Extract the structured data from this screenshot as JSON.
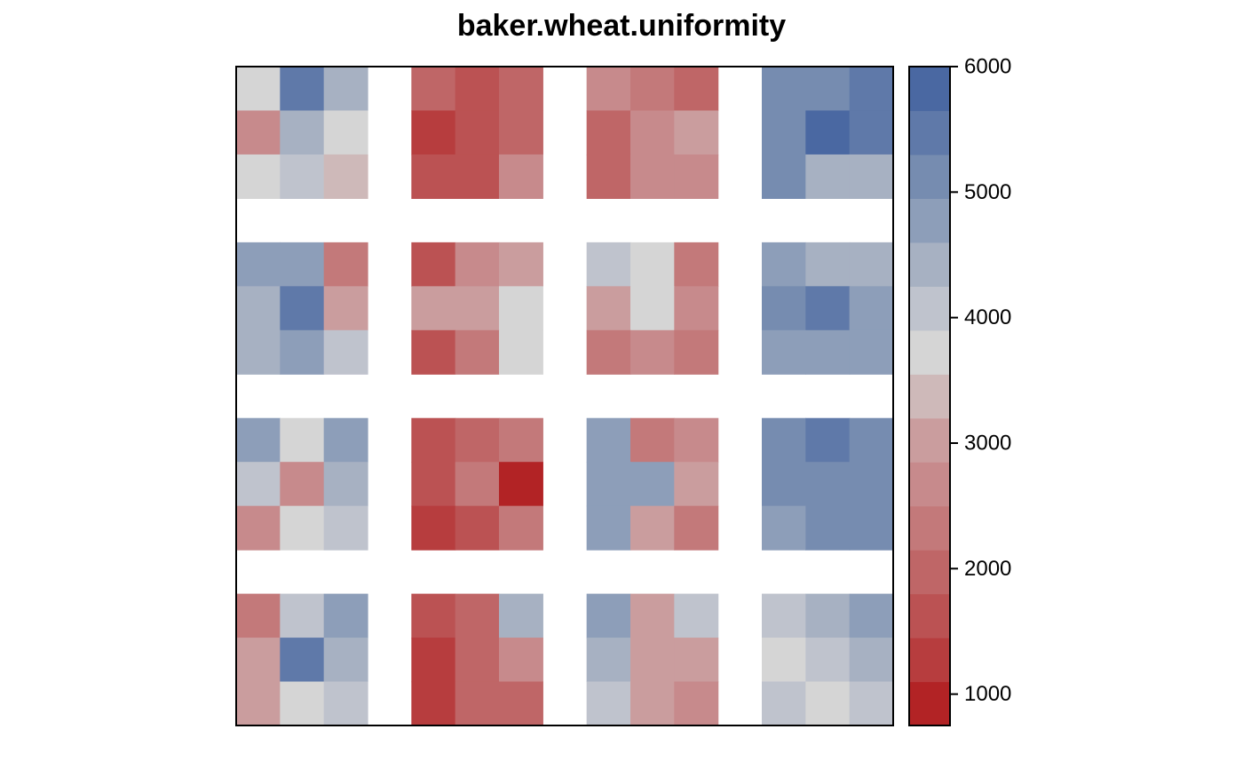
{
  "chart_data": {
    "type": "heatmap",
    "title": "baker.wheat.uniformity",
    "xlabel": "",
    "ylabel": "",
    "grid": false,
    "n_cols": 15,
    "n_rows": 15,
    "zlim": [
      750,
      6000
    ],
    "colorbar": {
      "placement": "right",
      "ticks": [
        1000,
        2000,
        3000,
        4000,
        5000,
        6000
      ],
      "tick_labels": [
        "1000",
        "2000",
        "3000",
        "4000",
        "5000",
        "6000"
      ],
      "colors": [
        "#b22325",
        "#b73d3e",
        "#bb5253",
        "#bf6667",
        "#c3797a",
        "#c78a8c",
        "#ca9d9e",
        "#ceb9b9",
        "#d5d5d5",
        "#bfc3cd",
        "#a7b1c2",
        "#8d9eb9",
        "#768cb0",
        "#5f79a9",
        "#4a68a2"
      ]
    },
    "values": [
      [
        3650,
        5450,
        4300,
        null,
        2050,
        1700,
        2050,
        null,
        2750,
        2300,
        1950,
        null,
        4950,
        4950,
        5400
      ],
      [
        2750,
        4300,
        3650,
        null,
        1300,
        1700,
        2050,
        null,
        2050,
        2750,
        3150,
        null,
        4950,
        5950,
        5450
      ],
      [
        3650,
        4050,
        3200,
        null,
        1700,
        1700,
        2750,
        null,
        2050,
        2750,
        2750,
        null,
        4950,
        4300,
        4300
      ],
      [
        null,
        null,
        null,
        null,
        null,
        null,
        null,
        null,
        null,
        null,
        null,
        null,
        null,
        null,
        null
      ],
      [
        4600,
        4600,
        2300,
        null,
        1700,
        2750,
        3150,
        null,
        4050,
        3650,
        2300,
        null,
        4600,
        4300,
        4300
      ],
      [
        4300,
        5450,
        3150,
        null,
        3150,
        3150,
        3650,
        null,
        3150,
        3650,
        2750,
        null,
        4950,
        5450,
        4600
      ],
      [
        4300,
        4600,
        4050,
        null,
        1700,
        2300,
        3650,
        null,
        2300,
        2750,
        2300,
        null,
        4600,
        4600,
        4600
      ],
      [
        null,
        null,
        null,
        null,
        null,
        null,
        null,
        null,
        null,
        null,
        null,
        null,
        null,
        null,
        null
      ],
      [
        4600,
        3650,
        4600,
        null,
        1700,
        2050,
        2300,
        null,
        4600,
        2300,
        2750,
        null,
        4950,
        5450,
        4950
      ],
      [
        4050,
        2750,
        4300,
        null,
        1700,
        2300,
        850,
        null,
        4600,
        4600,
        3150,
        null,
        4950,
        4950,
        4950
      ],
      [
        2750,
        3650,
        4050,
        null,
        1300,
        1700,
        2300,
        null,
        4600,
        3150,
        2300,
        null,
        4600,
        4950,
        4950
      ],
      [
        null,
        null,
        null,
        null,
        null,
        null,
        null,
        null,
        null,
        null,
        null,
        null,
        null,
        null,
        null
      ],
      [
        2300,
        4050,
        4600,
        null,
        1700,
        2050,
        4300,
        null,
        4600,
        3150,
        4050,
        null,
        4050,
        4300,
        4600
      ],
      [
        3150,
        5450,
        4300,
        null,
        1300,
        2050,
        2750,
        null,
        4300,
        3150,
        3150,
        null,
        3650,
        4050,
        4300
      ],
      [
        3150,
        3650,
        4050,
        null,
        1300,
        2050,
        2050,
        null,
        4050,
        3150,
        2750,
        null,
        4050,
        3650,
        4050
      ]
    ]
  }
}
